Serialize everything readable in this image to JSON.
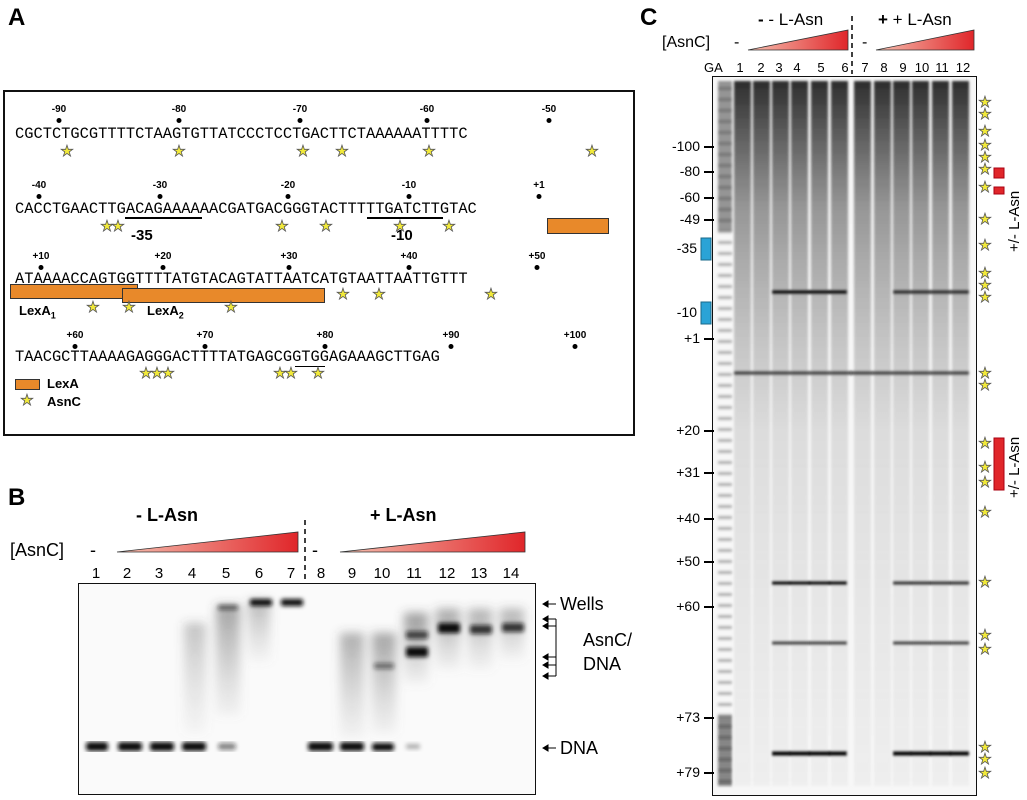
{
  "panels": {
    "a": "A",
    "b": "B",
    "c": "C"
  },
  "panel_a": {
    "seq_lines": [
      "CGCTCTGCGTTTTCTAAGTGTTATCCCTCCTGACTTCTAAAAAATTTTC",
      "CACCTGAACTTGACAGAAAAAACGATGACGGGTACTTTTTGATCTTGTAC",
      "ATAAAACCAGTGGTTTTATGTACAGTATTAATCATGTAATTAATTGTTT",
      "TAACGCTTAAAAGAGGGACTTTTATGAGCGGTGGAGAAAGCTTGAG"
    ],
    "positions_line1": [
      "-90",
      "-80",
      "-70",
      "-60",
      "-50"
    ],
    "positions_line2": [
      "-40",
      "-30",
      "-20",
      "-10",
      "+1"
    ],
    "positions_line3": [
      "+10",
      "+20",
      "+30",
      "+40",
      "+50"
    ],
    "positions_line4": [
      "+60",
      "+70",
      "+80",
      "+90",
      "+100"
    ],
    "box_minus35": "-35",
    "box_minus10": "-10",
    "lexa1_label": "LexA",
    "lexa1_sub": "1",
    "lexa2_label": "LexA",
    "lexa2_sub": "2",
    "legend_lexa": "LexA",
    "legend_asnc": "AsnC",
    "colors": {
      "lexa": "#e8892a",
      "asnc_star": "#f2ea3a"
    }
  },
  "panel_b": {
    "minus_label": "- L-Asn",
    "plus_label": "+ L-Asn",
    "asnc_label": "[AsnC]",
    "minus_dash_1": "-",
    "minus_dash_8": "-",
    "lanes": [
      "1",
      "2",
      "3",
      "4",
      "5",
      "6",
      "7",
      "8",
      "9",
      "10",
      "11",
      "12",
      "13",
      "14"
    ],
    "label_wells": "Wells",
    "label_complex_1": "AsnC/",
    "label_complex_2": "DNA",
    "label_dna": "DNA",
    "triangle_color": "#e0262a"
  },
  "panel_c": {
    "minus_label": "- L-Asn",
    "plus_label": "+ L-Asn",
    "asnc_label": "[AsnC]",
    "minus_dash_1": "-",
    "minus_dash_7": "-",
    "ga_label": "GA",
    "lanes": [
      "1",
      "2",
      "3",
      "4",
      "5",
      "6",
      "7",
      "8",
      "9",
      "10",
      "11",
      "12"
    ],
    "ticks": [
      "-100",
      "-80",
      "-60",
      "-49",
      "-35",
      "-10",
      "+1",
      "+20",
      "+31",
      "+40",
      "+50",
      "+60",
      "+73",
      "+79"
    ],
    "side_label_top": "+/- L-Asn",
    "side_label_bottom": "+/- L-Asn",
    "colors": {
      "blue_box": "#2aa3d6",
      "red_box": "#e0262a"
    }
  }
}
